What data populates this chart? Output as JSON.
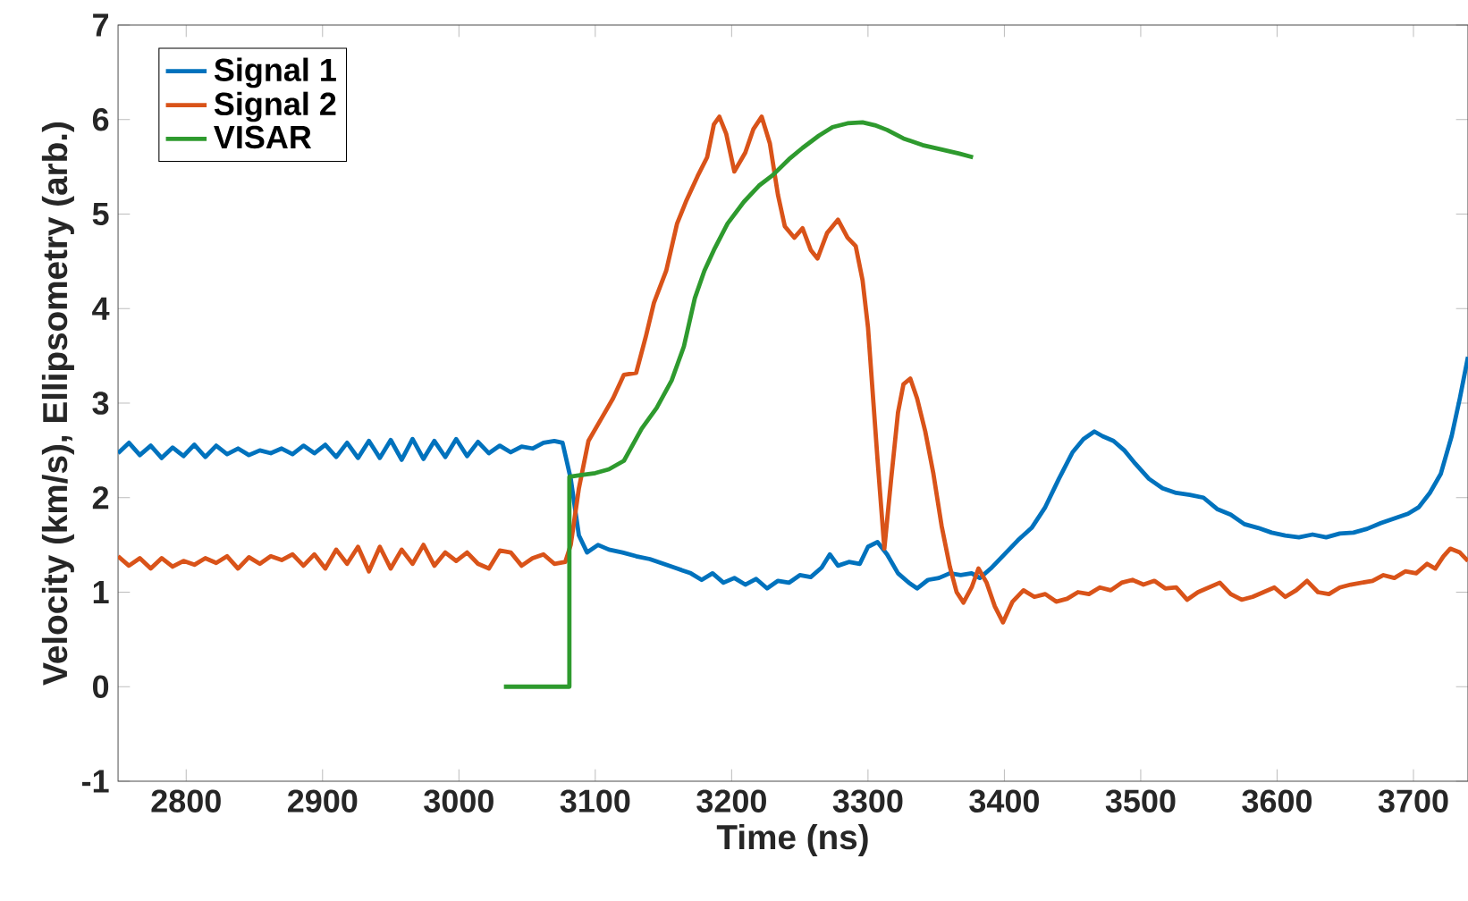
{
  "chart_data": {
    "type": "line",
    "xlabel": "Time (ns)",
    "ylabel": "Velocity (km/s), Ellipsometry (arb.)",
    "xlim": [
      2750,
      3740
    ],
    "ylim": [
      -1,
      7
    ],
    "xticks": [
      2800,
      2900,
      3000,
      3100,
      3200,
      3300,
      3400,
      3500,
      3600,
      3700
    ],
    "yticks": [
      -1,
      0,
      1,
      2,
      3,
      4,
      5,
      6,
      7
    ],
    "grid": false,
    "legend": "top left",
    "marker": "none",
    "line_style": "solid",
    "series": [
      {
        "name": "Signal 1",
        "color": "#0072bd",
        "x": [
          2750,
          2758,
          2766,
          2774,
          2782,
          2790,
          2798,
          2806,
          2814,
          2822,
          2830,
          2838,
          2846,
          2854,
          2862,
          2870,
          2878,
          2886,
          2894,
          2902,
          2910,
          2918,
          2926,
          2934,
          2942,
          2950,
          2958,
          2966,
          2974,
          2982,
          2990,
          2998,
          3006,
          3014,
          3022,
          3030,
          3038,
          3046,
          3054,
          3062,
          3070,
          3076,
          3082,
          3088,
          3094,
          3102,
          3110,
          3120,
          3130,
          3140,
          3150,
          3160,
          3170,
          3178,
          3186,
          3194,
          3202,
          3210,
          3218,
          3226,
          3234,
          3242,
          3250,
          3258,
          3266,
          3272,
          3278,
          3286,
          3294,
          3300,
          3307,
          3314,
          3322,
          3330,
          3336,
          3344,
          3352,
          3360,
          3368,
          3376,
          3382,
          3390,
          3400,
          3410,
          3420,
          3430,
          3440,
          3450,
          3458,
          3466,
          3472,
          3480,
          3488,
          3496,
          3506,
          3516,
          3526,
          3536,
          3546,
          3556,
          3566,
          3576,
          3586,
          3596,
          3606,
          3616,
          3626,
          3636,
          3646,
          3656,
          3666,
          3676,
          3686,
          3696,
          3704,
          3712,
          3720,
          3728,
          3734,
          3740
        ],
        "values": [
          2.47,
          2.58,
          2.45,
          2.55,
          2.42,
          2.53,
          2.44,
          2.56,
          2.43,
          2.55,
          2.46,
          2.52,
          2.45,
          2.5,
          2.47,
          2.52,
          2.46,
          2.55,
          2.47,
          2.56,
          2.43,
          2.58,
          2.42,
          2.6,
          2.42,
          2.61,
          2.4,
          2.62,
          2.41,
          2.6,
          2.43,
          2.62,
          2.44,
          2.59,
          2.47,
          2.55,
          2.48,
          2.54,
          2.52,
          2.58,
          2.6,
          2.58,
          2.2,
          1.6,
          1.42,
          1.5,
          1.45,
          1.42,
          1.38,
          1.35,
          1.3,
          1.25,
          1.2,
          1.13,
          1.2,
          1.1,
          1.15,
          1.08,
          1.14,
          1.04,
          1.12,
          1.1,
          1.18,
          1.16,
          1.26,
          1.4,
          1.28,
          1.32,
          1.3,
          1.48,
          1.53,
          1.4,
          1.2,
          1.1,
          1.04,
          1.13,
          1.15,
          1.2,
          1.18,
          1.2,
          1.15,
          1.25,
          1.4,
          1.55,
          1.68,
          1.9,
          2.2,
          2.48,
          2.62,
          2.7,
          2.65,
          2.6,
          2.5,
          2.36,
          2.2,
          2.1,
          2.05,
          2.03,
          2.0,
          1.88,
          1.82,
          1.72,
          1.68,
          1.63,
          1.6,
          1.58,
          1.61,
          1.58,
          1.62,
          1.63,
          1.67,
          1.73,
          1.78,
          1.83,
          1.9,
          2.05,
          2.25,
          2.65,
          3.05,
          3.49
        ]
      },
      {
        "name": "Signal 2",
        "color": "#d95319",
        "x": [
          2750,
          2758,
          2766,
          2774,
          2782,
          2790,
          2798,
          2806,
          2814,
          2822,
          2830,
          2838,
          2846,
          2854,
          2862,
          2870,
          2878,
          2886,
          2894,
          2902,
          2910,
          2918,
          2926,
          2934,
          2942,
          2950,
          2958,
          2966,
          2974,
          2982,
          2990,
          2998,
          3006,
          3014,
          3022,
          3030,
          3038,
          3046,
          3054,
          3062,
          3070,
          3078,
          3082,
          3088,
          3095,
          3105,
          3113,
          3121,
          3130,
          3137,
          3143,
          3152,
          3160,
          3167,
          3175,
          3182,
          3187,
          3191,
          3196,
          3202,
          3210,
          3216,
          3222,
          3228,
          3234,
          3239,
          3246,
          3252,
          3258,
          3263,
          3270,
          3278,
          3285,
          3291,
          3296,
          3300,
          3304,
          3307,
          3312,
          3317,
          3322,
          3326,
          3331,
          3336,
          3342,
          3348,
          3354,
          3360,
          3365,
          3370,
          3376,
          3381,
          3387,
          3393,
          3399,
          3406,
          3414,
          3422,
          3430,
          3438,
          3446,
          3454,
          3462,
          3470,
          3478,
          3486,
          3494,
          3502,
          3510,
          3518,
          3526,
          3534,
          3542,
          3550,
          3558,
          3566,
          3574,
          3582,
          3590,
          3598,
          3606,
          3614,
          3622,
          3630,
          3638,
          3646,
          3654,
          3662,
          3670,
          3678,
          3686,
          3694,
          3702,
          3710,
          3716,
          3722,
          3727,
          3734,
          3740
        ],
        "values": [
          1.38,
          1.28,
          1.36,
          1.25,
          1.36,
          1.27,
          1.33,
          1.29,
          1.36,
          1.31,
          1.38,
          1.25,
          1.37,
          1.3,
          1.38,
          1.34,
          1.4,
          1.28,
          1.4,
          1.25,
          1.45,
          1.3,
          1.48,
          1.22,
          1.48,
          1.25,
          1.45,
          1.3,
          1.5,
          1.28,
          1.42,
          1.33,
          1.42,
          1.3,
          1.25,
          1.44,
          1.42,
          1.28,
          1.36,
          1.4,
          1.3,
          1.32,
          1.5,
          2.1,
          2.6,
          2.85,
          3.05,
          3.3,
          3.32,
          3.7,
          4.06,
          4.4,
          4.9,
          5.15,
          5.4,
          5.6,
          5.95,
          6.03,
          5.85,
          5.45,
          5.65,
          5.9,
          6.03,
          5.75,
          5.2,
          4.87,
          4.75,
          4.85,
          4.62,
          4.53,
          4.8,
          4.94,
          4.75,
          4.66,
          4.3,
          3.8,
          3.0,
          2.4,
          1.46,
          2.2,
          2.9,
          3.2,
          3.26,
          3.05,
          2.7,
          2.25,
          1.7,
          1.27,
          1.0,
          0.89,
          1.05,
          1.25,
          1.1,
          0.85,
          0.68,
          0.9,
          1.02,
          0.95,
          0.98,
          0.9,
          0.93,
          1.0,
          0.98,
          1.05,
          1.02,
          1.1,
          1.13,
          1.08,
          1.12,
          1.04,
          1.05,
          0.92,
          1.0,
          1.05,
          1.1,
          0.98,
          0.92,
          0.95,
          1.0,
          1.05,
          0.95,
          1.02,
          1.12,
          1.0,
          0.98,
          1.05,
          1.08,
          1.1,
          1.12,
          1.18,
          1.15,
          1.22,
          1.2,
          1.3,
          1.25,
          1.38,
          1.46,
          1.42,
          1.33
        ]
      },
      {
        "name": "VISAR",
        "color": "#2e9a2e",
        "x": [
          3033,
          3081,
          3081,
          3090,
          3100,
          3110,
          3121,
          3134,
          3145,
          3156,
          3165,
          3173,
          3180,
          3187,
          3197,
          3209,
          3220,
          3230,
          3242,
          3252,
          3264,
          3274,
          3285,
          3296,
          3305,
          3314,
          3326,
          3340,
          3355,
          3367,
          3377
        ],
        "values": [
          0,
          0,
          2.22,
          2.24,
          2.26,
          2.3,
          2.39,
          2.73,
          2.95,
          3.24,
          3.6,
          4.11,
          4.4,
          4.62,
          4.9,
          5.13,
          5.3,
          5.41,
          5.58,
          5.7,
          5.83,
          5.92,
          5.96,
          5.97,
          5.94,
          5.89,
          5.8,
          5.73,
          5.68,
          5.64,
          5.6
        ]
      }
    ]
  }
}
